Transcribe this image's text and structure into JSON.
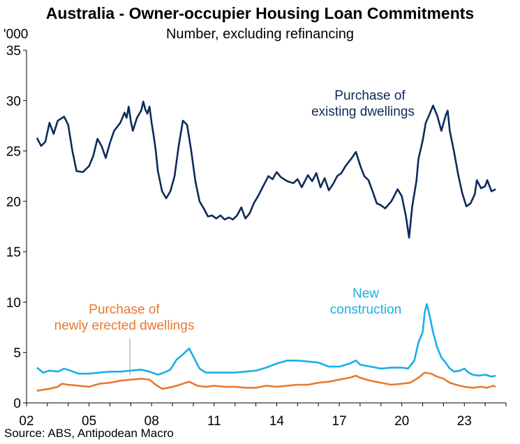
{
  "title": "Australia - Owner-occupier Housing Loan Commitments",
  "subtitle": "Number, excluding refinancing",
  "source": "Source: ABS, Antipodean Macro",
  "colors": {
    "existing": "#0d2a5c",
    "new_construction": "#1aaee6",
    "newly_erected": "#e8792f"
  },
  "chart_data": {
    "type": "line",
    "title": "Australia - Owner-occupier Housing Loan Commitments",
    "subtitle": "Number, excluding refinancing",
    "ylabel": "'000",
    "xlabel": "",
    "ylim": [
      0,
      35
    ],
    "xlim": [
      2002.0,
      2025.0
    ],
    "yticks": [
      "0",
      "5",
      "10",
      "15",
      "20",
      "25",
      "30",
      "35"
    ],
    "xticks": [
      "02",
      "05",
      "08",
      "11",
      "14",
      "17",
      "20",
      "23"
    ],
    "grid": false,
    "legend": "inline annotations",
    "series": [
      {
        "name": "Purchase of existing dwellings",
        "label_lines": [
          "Purchase of",
          "existing dwellings"
        ],
        "color": "#0d2a5c",
        "points": [
          [
            2002.5,
            26.3
          ],
          [
            2002.7,
            25.5
          ],
          [
            2002.9,
            25.9
          ],
          [
            2003.1,
            27.8
          ],
          [
            2003.3,
            26.7
          ],
          [
            2003.5,
            28.0
          ],
          [
            2003.8,
            28.4
          ],
          [
            2004.0,
            27.6
          ],
          [
            2004.2,
            25.0
          ],
          [
            2004.4,
            23.0
          ],
          [
            2004.7,
            22.9
          ],
          [
            2005.0,
            23.5
          ],
          [
            2005.2,
            24.5
          ],
          [
            2005.4,
            26.2
          ],
          [
            2005.6,
            25.5
          ],
          [
            2005.8,
            24.3
          ],
          [
            2006.0,
            25.8
          ],
          [
            2006.2,
            27.0
          ],
          [
            2006.5,
            27.8
          ],
          [
            2006.7,
            28.8
          ],
          [
            2006.8,
            28.3
          ],
          [
            2006.9,
            29.4
          ],
          [
            2007.0,
            28.0
          ],
          [
            2007.1,
            27.0
          ],
          [
            2007.3,
            28.3
          ],
          [
            2007.5,
            29.0
          ],
          [
            2007.6,
            29.9
          ],
          [
            2007.7,
            29.1
          ],
          [
            2007.8,
            28.7
          ],
          [
            2007.9,
            29.4
          ],
          [
            2008.0,
            27.8
          ],
          [
            2008.1,
            26.5
          ],
          [
            2008.2,
            25.0
          ],
          [
            2008.3,
            23.0
          ],
          [
            2008.5,
            21.0
          ],
          [
            2008.7,
            20.3
          ],
          [
            2008.9,
            21.0
          ],
          [
            2009.1,
            22.5
          ],
          [
            2009.3,
            25.5
          ],
          [
            2009.5,
            28.0
          ],
          [
            2009.7,
            27.6
          ],
          [
            2009.9,
            25.0
          ],
          [
            2010.1,
            22.0
          ],
          [
            2010.3,
            20.0
          ],
          [
            2010.5,
            19.3
          ],
          [
            2010.7,
            18.5
          ],
          [
            2010.9,
            18.6
          ],
          [
            2011.1,
            18.3
          ],
          [
            2011.3,
            18.6
          ],
          [
            2011.5,
            18.2
          ],
          [
            2011.7,
            18.4
          ],
          [
            2011.9,
            18.2
          ],
          [
            2012.1,
            18.6
          ],
          [
            2012.3,
            19.4
          ],
          [
            2012.5,
            18.3
          ],
          [
            2012.7,
            18.8
          ],
          [
            2012.9,
            19.8
          ],
          [
            2013.1,
            20.5
          ],
          [
            2013.4,
            21.7
          ],
          [
            2013.6,
            22.5
          ],
          [
            2013.8,
            22.2
          ],
          [
            2014.0,
            22.9
          ],
          [
            2014.2,
            22.4
          ],
          [
            2014.5,
            22.0
          ],
          [
            2014.8,
            21.8
          ],
          [
            2015.0,
            22.2
          ],
          [
            2015.2,
            21.4
          ],
          [
            2015.5,
            22.6
          ],
          [
            2015.7,
            22.0
          ],
          [
            2015.9,
            22.8
          ],
          [
            2016.1,
            21.4
          ],
          [
            2016.3,
            22.3
          ],
          [
            2016.5,
            21.1
          ],
          [
            2016.7,
            21.7
          ],
          [
            2016.9,
            22.5
          ],
          [
            2017.1,
            22.8
          ],
          [
            2017.3,
            23.5
          ],
          [
            2017.6,
            24.3
          ],
          [
            2017.8,
            24.9
          ],
          [
            2018.0,
            23.6
          ],
          [
            2018.2,
            22.5
          ],
          [
            2018.4,
            22.1
          ],
          [
            2018.6,
            21.0
          ],
          [
            2018.8,
            19.8
          ],
          [
            2019.0,
            19.6
          ],
          [
            2019.2,
            19.3
          ],
          [
            2019.5,
            20.0
          ],
          [
            2019.8,
            21.2
          ],
          [
            2020.0,
            20.5
          ],
          [
            2020.2,
            18.5
          ],
          [
            2020.35,
            16.4
          ],
          [
            2020.5,
            19.5
          ],
          [
            2020.7,
            22.0
          ],
          [
            2020.8,
            24.2
          ],
          [
            2021.0,
            26.0
          ],
          [
            2021.15,
            27.8
          ],
          [
            2021.3,
            28.5
          ],
          [
            2021.5,
            29.5
          ],
          [
            2021.7,
            28.5
          ],
          [
            2021.9,
            27.0
          ],
          [
            2022.1,
            28.5
          ],
          [
            2022.2,
            29.0
          ],
          [
            2022.3,
            27.0
          ],
          [
            2022.5,
            25.0
          ],
          [
            2022.7,
            22.7
          ],
          [
            2022.9,
            20.8
          ],
          [
            2023.1,
            19.5
          ],
          [
            2023.3,
            19.8
          ],
          [
            2023.5,
            20.7
          ],
          [
            2023.6,
            22.1
          ],
          [
            2023.8,
            21.3
          ],
          [
            2024.0,
            21.5
          ],
          [
            2024.1,
            22.1
          ],
          [
            2024.3,
            21.0
          ],
          [
            2024.5,
            21.2
          ]
        ]
      },
      {
        "name": "New construction",
        "label_lines": [
          "New",
          "construction"
        ],
        "color": "#1aaee6",
        "points": [
          [
            2002.5,
            3.5
          ],
          [
            2002.8,
            3.0
          ],
          [
            2003.1,
            3.2
          ],
          [
            2003.5,
            3.1
          ],
          [
            2003.8,
            3.4
          ],
          [
            2004.1,
            3.2
          ],
          [
            2004.5,
            2.9
          ],
          [
            2005.0,
            2.9
          ],
          [
            2005.5,
            3.0
          ],
          [
            2006.0,
            3.1
          ],
          [
            2006.5,
            3.1
          ],
          [
            2007.0,
            3.2
          ],
          [
            2007.5,
            3.3
          ],
          [
            2007.9,
            3.1
          ],
          [
            2008.3,
            2.8
          ],
          [
            2008.6,
            3.0
          ],
          [
            2008.9,
            3.3
          ],
          [
            2009.2,
            4.3
          ],
          [
            2009.5,
            4.8
          ],
          [
            2009.8,
            5.4
          ],
          [
            2010.0,
            4.6
          ],
          [
            2010.3,
            3.4
          ],
          [
            2010.6,
            3.0
          ],
          [
            2011.0,
            3.0
          ],
          [
            2011.5,
            3.0
          ],
          [
            2012.0,
            3.0
          ],
          [
            2012.5,
            3.1
          ],
          [
            2013.0,
            3.2
          ],
          [
            2013.5,
            3.5
          ],
          [
            2014.0,
            3.9
          ],
          [
            2014.5,
            4.2
          ],
          [
            2015.0,
            4.2
          ],
          [
            2015.5,
            4.1
          ],
          [
            2016.0,
            4.0
          ],
          [
            2016.5,
            3.6
          ],
          [
            2017.0,
            3.6
          ],
          [
            2017.5,
            3.9
          ],
          [
            2017.8,
            4.2
          ],
          [
            2018.0,
            3.8
          ],
          [
            2018.5,
            3.6
          ],
          [
            2019.0,
            3.4
          ],
          [
            2019.5,
            3.5
          ],
          [
            2020.0,
            3.5
          ],
          [
            2020.3,
            3.4
          ],
          [
            2020.6,
            4.2
          ],
          [
            2020.8,
            6.0
          ],
          [
            2021.0,
            7.0
          ],
          [
            2021.1,
            9.0
          ],
          [
            2021.2,
            9.8
          ],
          [
            2021.3,
            9.0
          ],
          [
            2021.5,
            7.0
          ],
          [
            2021.7,
            5.5
          ],
          [
            2021.9,
            4.5
          ],
          [
            2022.1,
            4.0
          ],
          [
            2022.3,
            3.4
          ],
          [
            2022.5,
            3.1
          ],
          [
            2022.8,
            3.2
          ],
          [
            2023.0,
            3.4
          ],
          [
            2023.2,
            3.0
          ],
          [
            2023.4,
            2.8
          ],
          [
            2023.7,
            2.7
          ],
          [
            2024.0,
            2.8
          ],
          [
            2024.3,
            2.6
          ],
          [
            2024.5,
            2.7
          ]
        ]
      },
      {
        "name": "Purchase of newly erected dwellings",
        "label_lines": [
          "Purchase of",
          "newly erected dwellings"
        ],
        "color": "#e8792f",
        "points": [
          [
            2002.5,
            1.2
          ],
          [
            2002.8,
            1.3
          ],
          [
            2003.1,
            1.4
          ],
          [
            2003.5,
            1.6
          ],
          [
            2003.7,
            1.9
          ],
          [
            2004.0,
            1.8
          ],
          [
            2004.5,
            1.7
          ],
          [
            2005.0,
            1.6
          ],
          [
            2005.5,
            1.9
          ],
          [
            2006.0,
            2.0
          ],
          [
            2006.5,
            2.2
          ],
          [
            2007.0,
            2.3
          ],
          [
            2007.5,
            2.4
          ],
          [
            2007.9,
            2.3
          ],
          [
            2008.2,
            1.8
          ],
          [
            2008.5,
            1.4
          ],
          [
            2008.8,
            1.5
          ],
          [
            2009.2,
            1.7
          ],
          [
            2009.5,
            1.9
          ],
          [
            2009.8,
            2.1
          ],
          [
            2010.2,
            1.7
          ],
          [
            2010.6,
            1.6
          ],
          [
            2011.0,
            1.7
          ],
          [
            2011.5,
            1.6
          ],
          [
            2012.0,
            1.6
          ],
          [
            2012.5,
            1.5
          ],
          [
            2013.0,
            1.5
          ],
          [
            2013.5,
            1.7
          ],
          [
            2014.0,
            1.6
          ],
          [
            2014.5,
            1.7
          ],
          [
            2015.0,
            1.8
          ],
          [
            2015.5,
            1.8
          ],
          [
            2016.0,
            2.0
          ],
          [
            2016.5,
            2.1
          ],
          [
            2017.0,
            2.3
          ],
          [
            2017.5,
            2.5
          ],
          [
            2017.8,
            2.7
          ],
          [
            2018.0,
            2.5
          ],
          [
            2018.5,
            2.2
          ],
          [
            2019.0,
            2.0
          ],
          [
            2019.5,
            1.8
          ],
          [
            2020.0,
            1.9
          ],
          [
            2020.4,
            2.0
          ],
          [
            2020.8,
            2.5
          ],
          [
            2021.1,
            3.0
          ],
          [
            2021.4,
            2.9
          ],
          [
            2021.7,
            2.6
          ],
          [
            2022.0,
            2.4
          ],
          [
            2022.3,
            2.0
          ],
          [
            2022.6,
            1.8
          ],
          [
            2023.0,
            1.6
          ],
          [
            2023.4,
            1.5
          ],
          [
            2023.8,
            1.6
          ],
          [
            2024.1,
            1.5
          ],
          [
            2024.4,
            1.7
          ],
          [
            2024.5,
            1.6
          ]
        ]
      }
    ]
  }
}
